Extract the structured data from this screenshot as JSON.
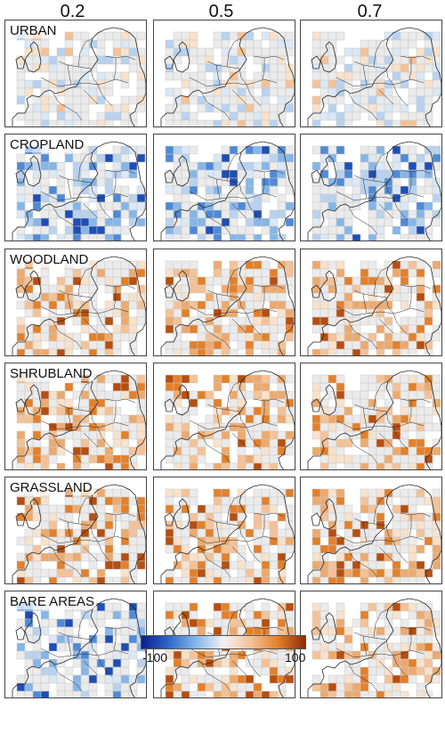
{
  "columns": [
    "0.2",
    "0.5",
    "0.7"
  ],
  "rows": [
    "URBAN",
    "CROPLAND",
    "WOODLAND",
    "SHRUBLAND",
    "GRASSLAND",
    "BARE AREAS"
  ],
  "legend": {
    "min_label": "-100",
    "max_label": "100",
    "colors": [
      "#0a1e8c",
      "#2f68c8",
      "#86b6e8",
      "#f3f3f3",
      "#f4c297",
      "#e3802a",
      "#8a2c05"
    ]
  },
  "colors": {
    "neutral_cell": "#ebebeb",
    "cell_border": "#c9c9c9",
    "coastline": "#2a2a2a"
  }
}
